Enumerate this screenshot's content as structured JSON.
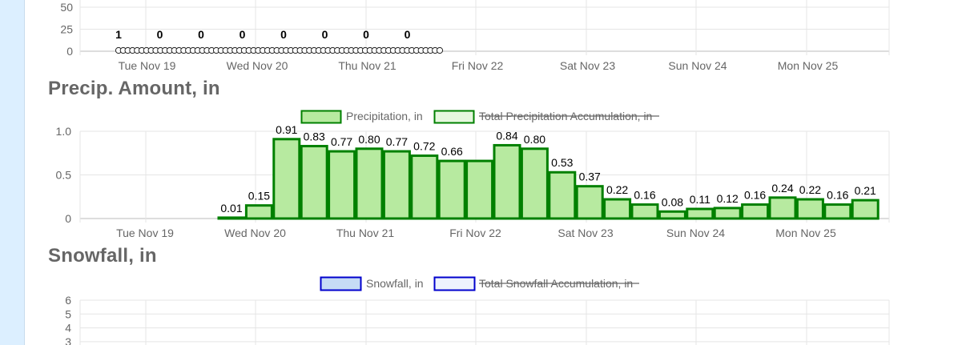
{
  "day_labels": [
    "Tue Nov 19",
    "Wed Nov 20",
    "Thu Nov 21",
    "Fri Nov 22",
    "Sat Nov 23",
    "Sun Nov 24",
    "Mon Nov 25"
  ],
  "chart_data": [
    {
      "type": "scatter",
      "title": "",
      "yticks": [
        0,
        25,
        50
      ],
      "ylim": [
        0,
        50
      ],
      "labels": [
        "1",
        "0",
        "0",
        "0",
        "0",
        "0",
        "0",
        "0"
      ],
      "point_count": 70,
      "grid": true
    },
    {
      "type": "bar",
      "title": "Precip. Amount, in",
      "legend": {
        "position": "top",
        "items": [
          {
            "name": "Precipitation, in",
            "color": "#b7eaa0",
            "border": "#008000",
            "hidden": false
          },
          {
            "name": "Total Precipitation Accumulation, in",
            "color": "#e6f8de",
            "border": "#008000",
            "hidden": true
          }
        ]
      },
      "yticks": [
        "0",
        "0.5",
        "1.0"
      ],
      "ylim": [
        0,
        1.0
      ],
      "series": [
        {
          "name": "Precipitation, in",
          "values": [
            0.01,
            0.15,
            0.91,
            0.83,
            0.77,
            0.8,
            0.77,
            0.72,
            0.66,
            0.66,
            0.84,
            0.8,
            0.53,
            0.37,
            0.22,
            0.16,
            0.08,
            0.11,
            0.12,
            0.16,
            0.24,
            0.22,
            0.16,
            0.21
          ],
          "labels": [
            "0.01",
            "0.15",
            "0.91",
            "0.83",
            "0.77",
            "0.80",
            "0.77",
            "0.72",
            "0.66",
            "",
            "0.84",
            "0.80",
            "0.53",
            "0.37",
            "0.22",
            "0.16",
            "0.08",
            "0.11",
            "0.12",
            "0.16",
            "0.24",
            "0.22",
            "0.16",
            "0.21"
          ]
        }
      ],
      "grid": true
    },
    {
      "type": "bar",
      "title": "Snowfall, in",
      "legend": {
        "position": "top",
        "items": [
          {
            "name": "Snowfall, in",
            "color": "#c6dcf5",
            "border": "#0000cc",
            "hidden": false
          },
          {
            "name": "Total Snowfall Accumulation, in",
            "color": "#eef3fd",
            "border": "#0000cc",
            "hidden": true
          }
        ]
      },
      "yticks": [
        "3",
        "4",
        "5",
        "6"
      ],
      "grid": true
    }
  ]
}
